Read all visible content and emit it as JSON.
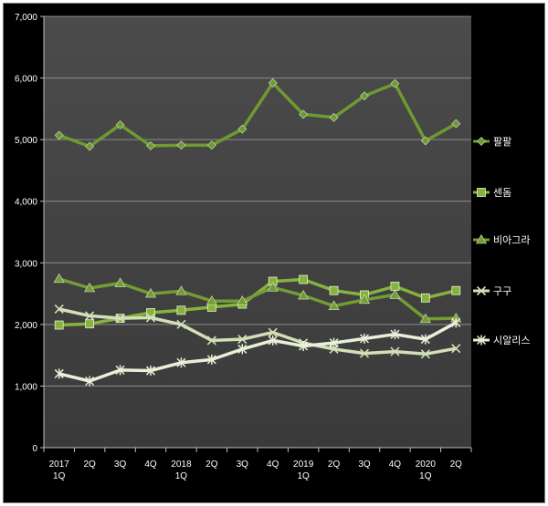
{
  "chart_data": {
    "type": "line",
    "title": "",
    "xlabel": "",
    "ylabel": "",
    "ylim": [
      0,
      7000
    ],
    "yticks": [
      0,
      1000,
      2000,
      3000,
      4000,
      5000,
      6000,
      7000
    ],
    "ytick_labels": [
      "0",
      "1,000",
      "2,000",
      "3,000",
      "4,000",
      "5,000",
      "6,000",
      "7,000"
    ],
    "grid": true,
    "legend_position": "right",
    "categories": [
      [
        "2017",
        "1Q"
      ],
      [
        "2Q"
      ],
      [
        "3Q"
      ],
      [
        "4Q"
      ],
      [
        "2018",
        "1Q"
      ],
      [
        "2Q"
      ],
      [
        "3Q"
      ],
      [
        "4Q"
      ],
      [
        "2019",
        "1Q"
      ],
      [
        "2Q"
      ],
      [
        "3Q"
      ],
      [
        "4Q"
      ],
      [
        "2020",
        "1Q"
      ],
      [
        "2Q"
      ]
    ],
    "series": [
      {
        "name": "팔팔",
        "marker": "diamond",
        "color": "#6f9a32",
        "values": [
          5070,
          4890,
          5240,
          4900,
          4910,
          4910,
          5170,
          5920,
          5410,
          5360,
          5710,
          5910,
          4980,
          5260
        ]
      },
      {
        "name": "센돔",
        "marker": "square",
        "color": "#86b33d",
        "values": [
          1990,
          2010,
          2100,
          2190,
          2230,
          2280,
          2330,
          2700,
          2730,
          2550,
          2480,
          2620,
          2430,
          2550
        ]
      },
      {
        "name": "비아그라",
        "marker": "triangle",
        "color": "#739c34",
        "values": [
          2740,
          2590,
          2670,
          2500,
          2540,
          2380,
          2380,
          2600,
          2470,
          2300,
          2400,
          2480,
          2090,
          2100
        ]
      },
      {
        "name": "구구",
        "marker": "x",
        "color": "#d2e0b8",
        "values": [
          2250,
          2140,
          2100,
          2110,
          2000,
          1740,
          1760,
          1870,
          1700,
          1600,
          1530,
          1560,
          1520,
          1610
        ]
      },
      {
        "name": "시알리스",
        "marker": "star",
        "color": "#e9f0d9",
        "values": [
          1200,
          1080,
          1260,
          1250,
          1380,
          1430,
          1600,
          1740,
          1650,
          1700,
          1770,
          1840,
          1760,
          2030
        ]
      }
    ]
  }
}
